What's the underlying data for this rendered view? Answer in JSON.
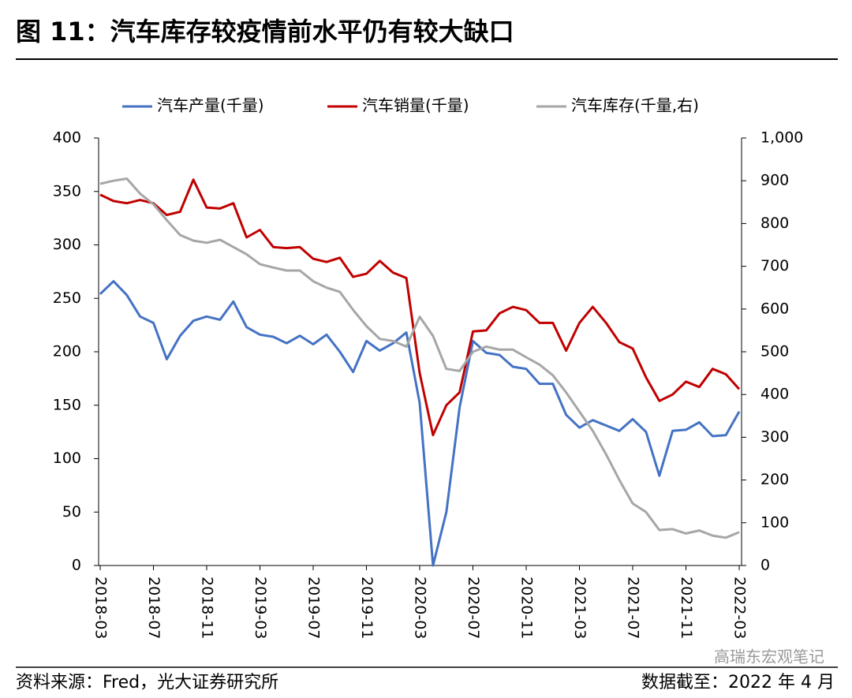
{
  "chart_data": {
    "type": "line",
    "title": "图 11：汽车库存较疫情前水平仍有较大缺口",
    "source": "资料来源：Fred，光大证券研究所",
    "date_note": "数据截至：2022 年 4 月",
    "watermark": "高瑞东宏观笔记",
    "categories": [
      "2018-03",
      null,
      null,
      null,
      "2018-07",
      null,
      null,
      null,
      "2018-11",
      null,
      null,
      null,
      "2019-03",
      null,
      null,
      null,
      "2019-07",
      null,
      null,
      null,
      "2019-11",
      null,
      null,
      null,
      "2020-03",
      null,
      null,
      null,
      "2020-07",
      null,
      null,
      null,
      "2020-11",
      null,
      null,
      null,
      "2021-03",
      null,
      null,
      null,
      "2021-07",
      null,
      null,
      null,
      "2021-11",
      null,
      null,
      null,
      "2022-03"
    ],
    "series": [
      {
        "name": "汽车产量(千量)",
        "color": "#4472c4",
        "axis": "y",
        "values": [
          254,
          266,
          253,
          233,
          227,
          193,
          215,
          229,
          233,
          230,
          247,
          223,
          216,
          214,
          208,
          215,
          207,
          216,
          200,
          181,
          210,
          201,
          208,
          218,
          152,
          0,
          50,
          148,
          210,
          199,
          197,
          186,
          184,
          170,
          170,
          141,
          129,
          136,
          131,
          126,
          137,
          125,
          84,
          126,
          127,
          134,
          121,
          122,
          144
        ]
      },
      {
        "name": "汽车销量(千量)",
        "color": "#c00000",
        "axis": "y",
        "values": [
          347,
          341,
          339,
          342,
          339,
          328,
          331,
          361,
          335,
          334,
          339,
          307,
          314,
          298,
          297,
          298,
          287,
          284,
          288,
          270,
          273,
          285,
          274,
          269,
          180,
          122,
          150,
          162,
          219,
          220,
          236,
          242,
          239,
          227,
          227,
          201,
          227,
          242,
          227,
          209,
          203,
          176,
          154,
          160,
          172,
          167,
          184,
          179,
          165
        ]
      },
      {
        "name": "汽车库存(千量,右)",
        "color": "#a6a6a6",
        "axis": "y2",
        "values": [
          893,
          900,
          905,
          870,
          845,
          808,
          773,
          760,
          755,
          762,
          745,
          728,
          705,
          697,
          690,
          690,
          665,
          650,
          640,
          598,
          560,
          530,
          525,
          512,
          582,
          537,
          460,
          455,
          500,
          512,
          505,
          505,
          487,
          470,
          445,
          405,
          360,
          315,
          260,
          200,
          145,
          125,
          83,
          85,
          75,
          82,
          70,
          65,
          78
        ]
      }
    ],
    "ylim": [
      0,
      400
    ],
    "yticks": [
      0,
      50,
      100,
      150,
      200,
      250,
      300,
      350,
      400
    ],
    "y2lim": [
      0,
      1000
    ],
    "y2ticks": [
      0,
      100,
      200,
      300,
      400,
      500,
      600,
      700,
      800,
      900,
      {
        "value": 1000,
        "label": "1,000"
      }
    ],
    "legend": "top"
  }
}
